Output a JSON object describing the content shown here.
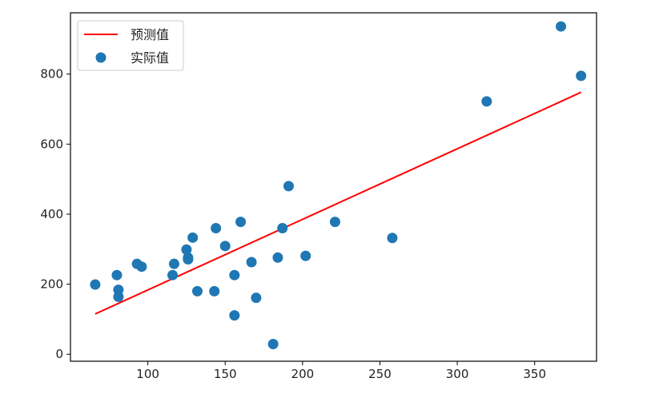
{
  "chart_data": {
    "type": "scatter",
    "title": "",
    "xlabel": "",
    "ylabel": "",
    "xlim": [
      50,
      390
    ],
    "ylim": [
      -20,
      975
    ],
    "xticks": [
      100,
      150,
      200,
      250,
      300,
      350
    ],
    "yticks": [
      0,
      200,
      400,
      600,
      800
    ],
    "grid": false,
    "legend_position": "upper-left",
    "series": [
      {
        "name": "预测值",
        "kind": "line",
        "color": "#ff0000",
        "x": [
          66,
          380
        ],
        "y": [
          115,
          748
        ]
      },
      {
        "name": "实际值",
        "kind": "scatter",
        "color": "#1f77b4",
        "x": [
          66,
          80,
          81,
          81,
          93,
          96,
          116,
          117,
          125,
          126,
          126,
          129,
          132,
          143,
          144,
          150,
          156,
          156,
          160,
          167,
          170,
          181,
          184,
          187,
          191,
          202,
          221,
          258,
          319,
          367,
          380
        ],
        "y": [
          199,
          226,
          184,
          164,
          258,
          250,
          226,
          258,
          299,
          271,
          276,
          333,
          180,
          180,
          360,
          309,
          111,
          226,
          378,
          263,
          161,
          29,
          276,
          360,
          480,
          281,
          378,
          332,
          722,
          936,
          795
        ]
      }
    ]
  }
}
